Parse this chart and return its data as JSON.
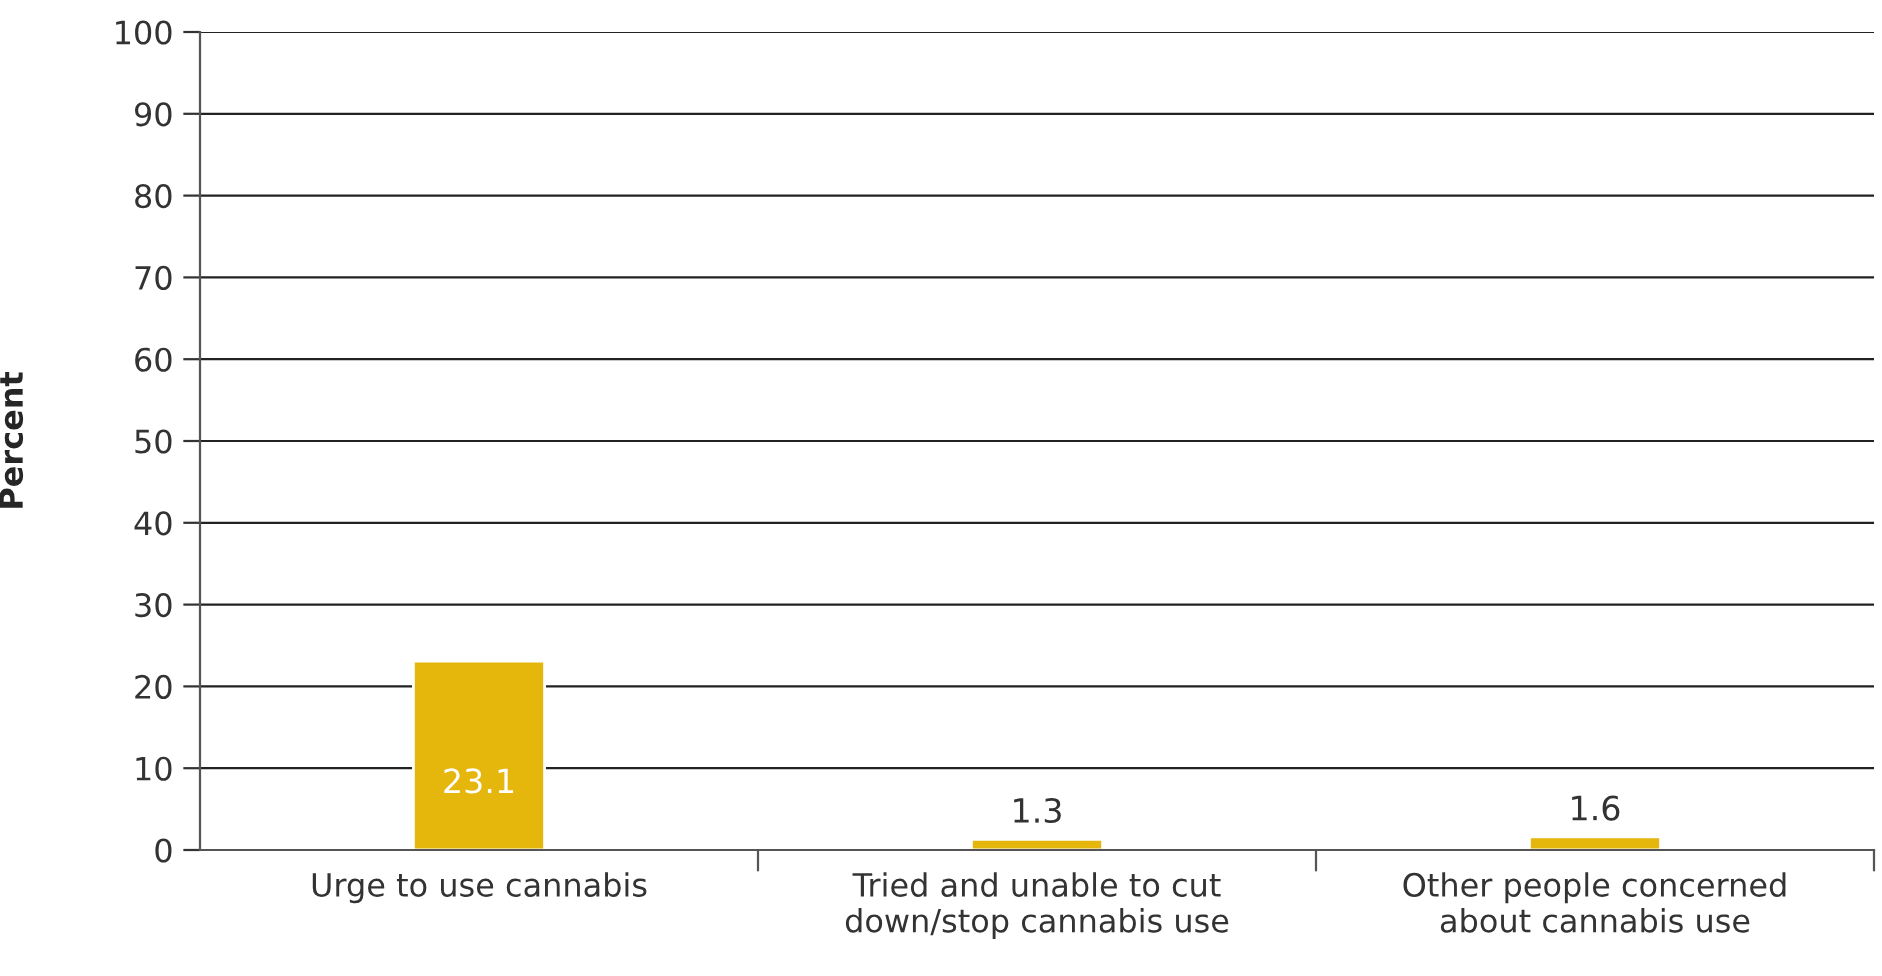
{
  "chart_data": {
    "type": "bar",
    "ylabel": "Percent",
    "categories": [
      "Urge to use cannabis",
      "Tried and unable to cut\ndown/stop cannabis use",
      "Other people concerned\nabout cannabis use"
    ],
    "values": [
      23.1,
      1.3,
      1.6
    ],
    "color": "#e5b60c",
    "ylim": [
      0,
      100
    ],
    "yticks": [
      0,
      10,
      20,
      30,
      40,
      50,
      60,
      70,
      80,
      90,
      100
    ],
    "grid": "y",
    "data_labels": true
  }
}
